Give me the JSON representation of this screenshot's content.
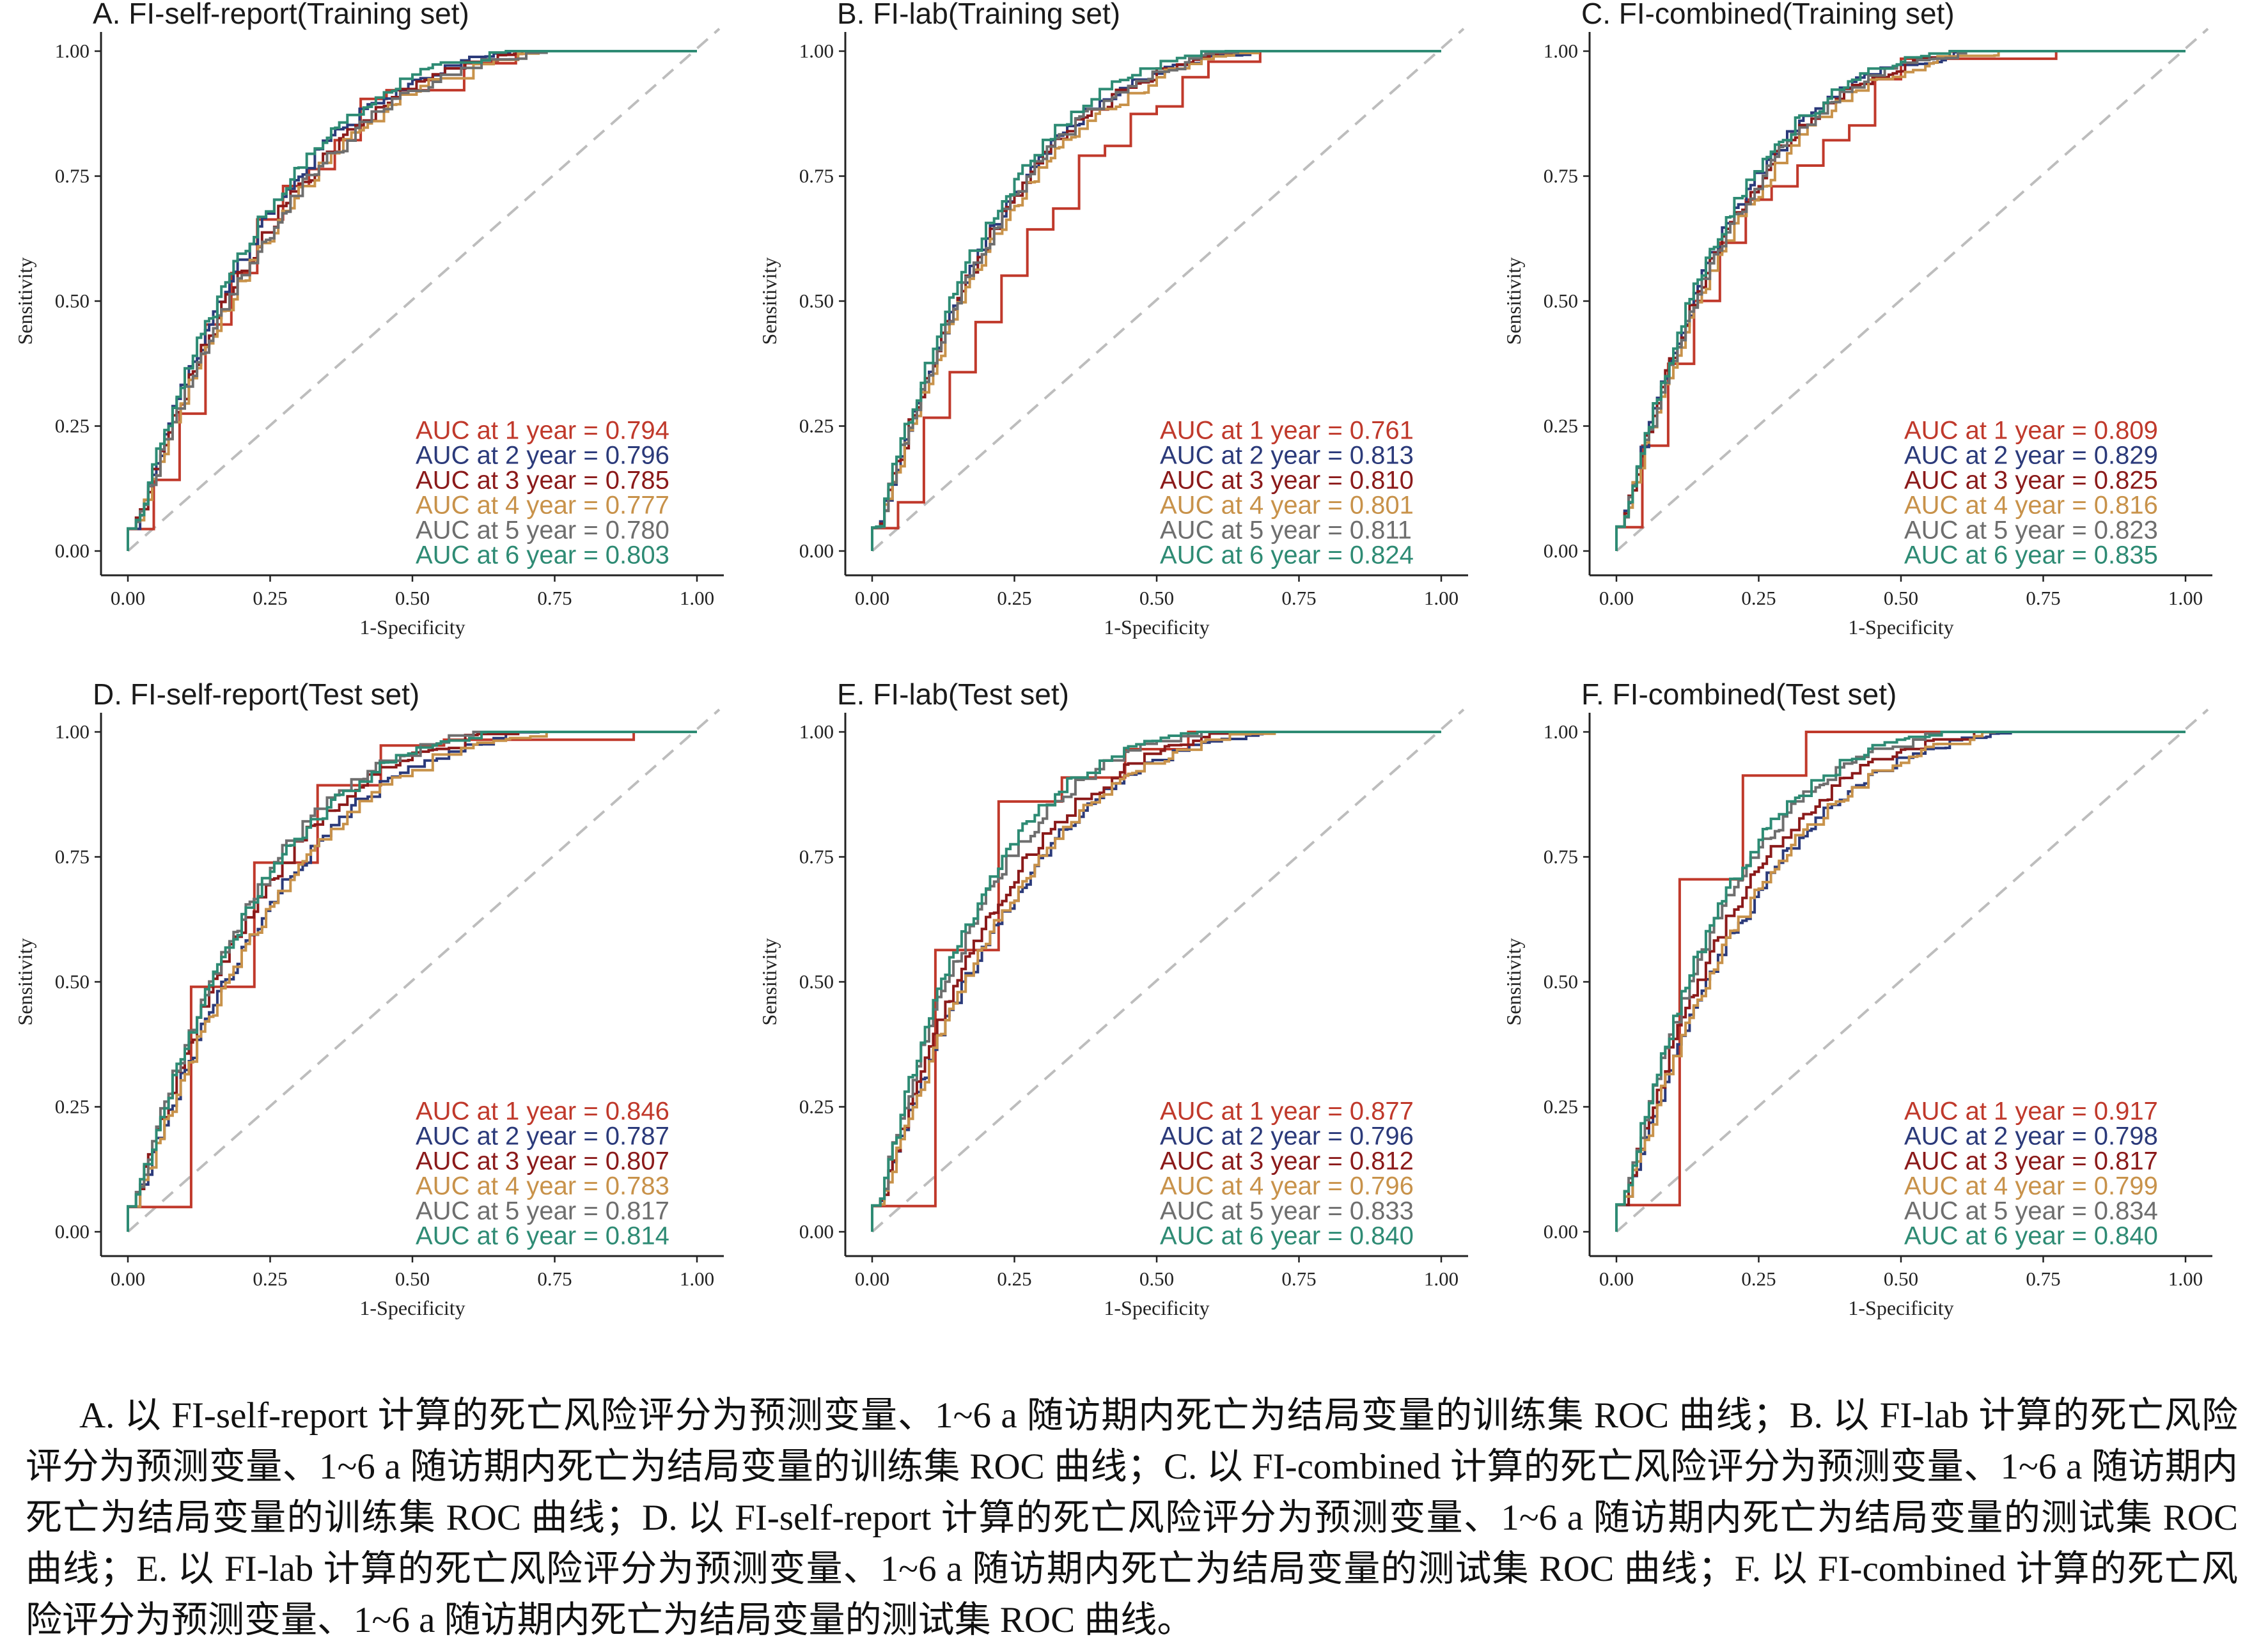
{
  "chart_data": [
    {
      "type": "line",
      "title": "A. FI-self-report(Training set)",
      "xlabel": "1-Specificity",
      "ylabel": "Sensitivity",
      "xlim": [
        0,
        1
      ],
      "ylim": [
        0,
        1
      ],
      "xticks": [
        "0.00",
        "0.25",
        "0.50",
        "0.75",
        "1.00"
      ],
      "yticks": [
        "0.00",
        "0.25",
        "0.50",
        "0.75",
        "1.00"
      ],
      "legend_position": "bottom-right",
      "series": [
        {
          "name": "AUC at 1 year = 0.794",
          "year": 1,
          "auc": 0.794
        },
        {
          "name": "AUC at 2 year = 0.796",
          "year": 2,
          "auc": 0.796
        },
        {
          "name": "AUC at 3 year = 0.785",
          "year": 3,
          "auc": 0.785
        },
        {
          "name": "AUC at 4 year = 0.777",
          "year": 4,
          "auc": 0.777
        },
        {
          "name": "AUC at 5 year = 0.780",
          "year": 5,
          "auc": 0.78
        },
        {
          "name": "AUC at 6 year = 0.803",
          "year": 6,
          "auc": 0.803
        }
      ]
    },
    {
      "type": "line",
      "title": "B. FI-lab(Training set)",
      "xlabel": "1-Specificity",
      "ylabel": "Sensitivity",
      "xlim": [
        0,
        1
      ],
      "ylim": [
        0,
        1
      ],
      "xticks": [
        "0.00",
        "0.25",
        "0.50",
        "0.75",
        "1.00"
      ],
      "yticks": [
        "0.00",
        "0.25",
        "0.50",
        "0.75",
        "1.00"
      ],
      "legend_position": "bottom-right",
      "series": [
        {
          "name": "AUC at 1 year = 0.761",
          "year": 1,
          "auc": 0.761
        },
        {
          "name": "AUC at 2 year = 0.813",
          "year": 2,
          "auc": 0.813
        },
        {
          "name": "AUC at 3 year = 0.810",
          "year": 3,
          "auc": 0.81
        },
        {
          "name": "AUC at 4 year = 0.801",
          "year": 4,
          "auc": 0.801
        },
        {
          "name": "AUC at 5 year = 0.811",
          "year": 5,
          "auc": 0.811
        },
        {
          "name": "AUC at 6 year = 0.824",
          "year": 6,
          "auc": 0.824
        }
      ]
    },
    {
      "type": "line",
      "title": "C. FI-combined(Training set)",
      "xlabel": "1-Specificity",
      "ylabel": "Sensitivity",
      "xlim": [
        0,
        1
      ],
      "ylim": [
        0,
        1
      ],
      "xticks": [
        "0.00",
        "0.25",
        "0.50",
        "0.75",
        "1.00"
      ],
      "yticks": [
        "0.00",
        "0.25",
        "0.50",
        "0.75",
        "1.00"
      ],
      "legend_position": "bottom-right",
      "series": [
        {
          "name": "AUC at 1 year = 0.809",
          "year": 1,
          "auc": 0.809
        },
        {
          "name": "AUC at 2 year = 0.829",
          "year": 2,
          "auc": 0.829
        },
        {
          "name": "AUC at 3 year = 0.825",
          "year": 3,
          "auc": 0.825
        },
        {
          "name": "AUC at 4 year = 0.816",
          "year": 4,
          "auc": 0.816
        },
        {
          "name": "AUC at 5 year = 0.823",
          "year": 5,
          "auc": 0.823
        },
        {
          "name": "AUC at 6 year = 0.835",
          "year": 6,
          "auc": 0.835
        }
      ]
    },
    {
      "type": "line",
      "title": "D. FI-self-report(Test set)",
      "xlabel": "1-Specificity",
      "ylabel": "Sensitivity",
      "xlim": [
        0,
        1
      ],
      "ylim": [
        0,
        1
      ],
      "xticks": [
        "0.00",
        "0.25",
        "0.50",
        "0.75",
        "1.00"
      ],
      "yticks": [
        "0.00",
        "0.25",
        "0.50",
        "0.75",
        "1.00"
      ],
      "legend_position": "bottom-right",
      "series": [
        {
          "name": "AUC at 1 year = 0.846",
          "year": 1,
          "auc": 0.846
        },
        {
          "name": "AUC at 2 year = 0.787",
          "year": 2,
          "auc": 0.787
        },
        {
          "name": "AUC at 3 year = 0.807",
          "year": 3,
          "auc": 0.807
        },
        {
          "name": "AUC at 4 year = 0.783",
          "year": 4,
          "auc": 0.783
        },
        {
          "name": "AUC at 5 year = 0.817",
          "year": 5,
          "auc": 0.817
        },
        {
          "name": "AUC at 6 year = 0.814",
          "year": 6,
          "auc": 0.814
        }
      ]
    },
    {
      "type": "line",
      "title": "E. FI-lab(Test set)",
      "xlabel": "1-Specificity",
      "ylabel": "Sensitivity",
      "xlim": [
        0,
        1
      ],
      "ylim": [
        0,
        1
      ],
      "xticks": [
        "0.00",
        "0.25",
        "0.50",
        "0.75",
        "1.00"
      ],
      "yticks": [
        "0.00",
        "0.25",
        "0.50",
        "0.75",
        "1.00"
      ],
      "legend_position": "bottom-right",
      "series": [
        {
          "name": "AUC at 1 year = 0.877",
          "year": 1,
          "auc": 0.877
        },
        {
          "name": "AUC at 2 year = 0.796",
          "year": 2,
          "auc": 0.796
        },
        {
          "name": "AUC at 3 year = 0.812",
          "year": 3,
          "auc": 0.812
        },
        {
          "name": "AUC at 4 year = 0.796",
          "year": 4,
          "auc": 0.796
        },
        {
          "name": "AUC at 5 year = 0.833",
          "year": 5,
          "auc": 0.833
        },
        {
          "name": "AUC at 6 year = 0.840",
          "year": 6,
          "auc": 0.84
        }
      ]
    },
    {
      "type": "line",
      "title": "F. FI-combined(Test set)",
      "xlabel": "1-Specificity",
      "ylabel": "Sensitivity",
      "xlim": [
        0,
        1
      ],
      "ylim": [
        0,
        1
      ],
      "xticks": [
        "0.00",
        "0.25",
        "0.50",
        "0.75",
        "1.00"
      ],
      "yticks": [
        "0.00",
        "0.25",
        "0.50",
        "0.75",
        "1.00"
      ],
      "legend_position": "bottom-right",
      "series": [
        {
          "name": "AUC at 1 year = 0.917",
          "year": 1,
          "auc": 0.917
        },
        {
          "name": "AUC at 2 year = 0.798",
          "year": 2,
          "auc": 0.798
        },
        {
          "name": "AUC at 3 year = 0.817",
          "year": 3,
          "auc": 0.817
        },
        {
          "name": "AUC at 4 year = 0.799",
          "year": 4,
          "auc": 0.799
        },
        {
          "name": "AUC at 5 year = 0.834",
          "year": 5,
          "auc": 0.834
        },
        {
          "name": "AUC at 6 year = 0.840",
          "year": 6,
          "auc": 0.84
        }
      ]
    }
  ],
  "series_colors": [
    "#c0392b",
    "#2b3a7a",
    "#8b1a1a",
    "#c8924a",
    "#6e6e6e",
    "#2e8b74"
  ],
  "reference_line_color": "#bdbdbd",
  "caption": "A. 以 FI-self-report 计算的死亡风险评分为预测变量、1~6 a 随访期内死亡为结局变量的训练集 ROC 曲线；B. 以 FI-lab 计算的死亡风险评分为预测变量、1~6 a 随访期内死亡为结局变量的训练集 ROC 曲线；C. 以 FI-combined 计算的死亡风险评分为预测变量、1~6 a 随访期内死亡为结局变量的训练集 ROC 曲线；D. 以 FI-self-report 计算的死亡风险评分为预测变量、1~6 a 随访期内死亡为结局变量的测试集 ROC 曲线；E. 以 FI-lab 计算的死亡风险评分为预测变量、1~6 a 随访期内死亡为结局变量的测试集 ROC 曲线；F. 以 FI-combined 计算的死亡风险评分为预测变量、1~6 a 随访期内死亡为结局变量的测试集 ROC 曲线。"
}
